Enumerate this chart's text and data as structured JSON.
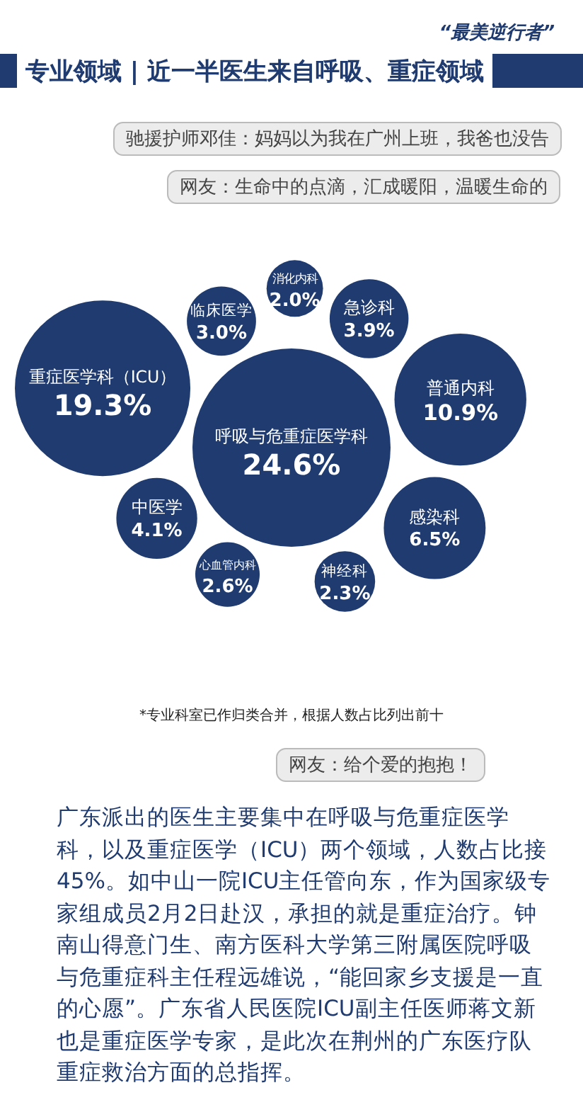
{
  "chart_data": {
    "type": "other",
    "title": "专业领域 | 近一半医生来自呼吸、重症领域",
    "subtitle": "“最美逆行者”",
    "categories": [
      "呼吸与危重症医学科",
      "重症医学科（ICU）",
      "普通内科",
      "感染科",
      "中医学",
      "急诊科",
      "临床医学",
      "心血管内科",
      "神经科",
      "消化内科"
    ],
    "values": [
      24.6,
      19.3,
      10.9,
      6.5,
      4.1,
      3.9,
      3.0,
      2.6,
      2.3,
      2.0
    ],
    "value_labels": [
      "24.6%",
      "19.3%",
      "10.9%",
      "6.5%",
      "4.1%",
      "3.9%",
      "3.0%",
      "2.6%",
      "2.3%",
      "2.0%"
    ],
    "color": "#1f3b6f",
    "annotations": [
      "驰援护师邓佳：妈妈以为我在广州上班，我爸也没告",
      "网友：生命中的点滴，汇成暖阳，温暖生命的",
      "*专业科室已作归类合并，根据人数占比列出前十",
      "网友：给个爱的抱抱！",
      "广东派出的医生主要集中在呼吸与危重症医学科，以及重症医学（ICU）两个领域，人数占比接45%。如中山一院ICU主任管向东，作为国家级专家组成员2月2日赴汉，承担的就是重症治疗。钟南山得意门生、南方医科大学第三附属医院呼吸与危重症科主任程远雄说，“能回家乡支援是一直的心愿”。广东省人民医院ICU副主任医师蒋文新也是重症医学专家，是此次在荆州的广东医疗队重症救治方面的总指挥。"
    ]
  }
}
